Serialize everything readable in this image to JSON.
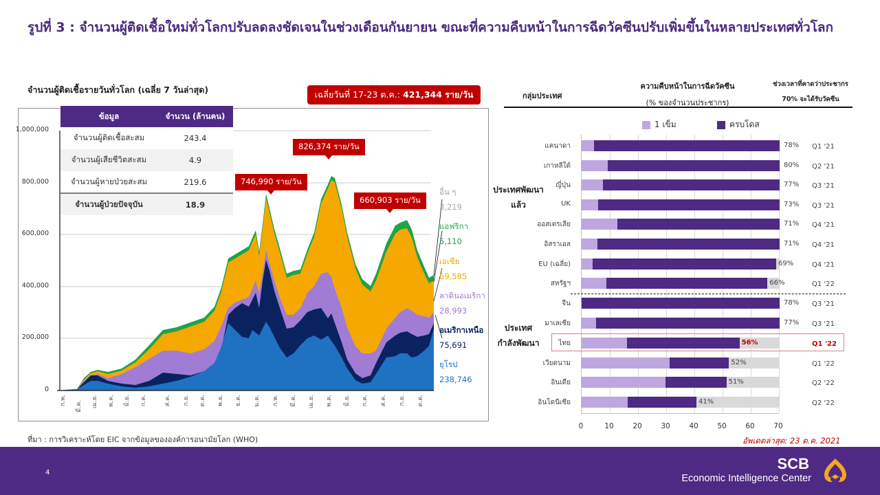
{
  "page": {
    "title": "รูปที่ 3 : จำนวนผู้ติดเชื้อใหม่ทั่วโลกปรับลดลงชัดเจนในช่วงเดือนกันยายน ขณะที่ความคืบหน้าในการฉีดวัคซีนปรับเพิ่มขึ้นในหลายประเทศทั่วโลก",
    "source": "ที่มา : การวิเคราะห์โดย EIC จากข้อมูลขององค์การอนามัยโลก (WHO)",
    "updated": "อัพเดตล่าสุด: 23 ต.ค. 2021",
    "page_number": "4"
  },
  "footer": {
    "brand": "SCB",
    "brand_sub": "Economic Intelligence Center",
    "logo_icon": "scb-lotus-logo-icon",
    "bg_color": "#4f2a84",
    "logo_color": "#f5a623"
  },
  "left_chart": {
    "subtitle": "จำนวนผู้ติดเชื้อรายวันทั่วโลก  (เฉลี่ย  7 วันล่าสุด)",
    "avg_badge": {
      "prefix": "เฉลี่ยวันที่ 17-23 ต.ค.:",
      "value": "421,344 ราย/วัน"
    },
    "table": {
      "headers": [
        "ข้อมูล",
        "จำนวน (ล้านคน)"
      ],
      "rows": [
        {
          "label": "จำนวนผู้ติดเชื้อสะสม",
          "value": "243.4"
        },
        {
          "label": "จำนวนผู้เสียชีวิตสะสม",
          "value": "4.9"
        },
        {
          "label": "จำนวนผู้หายป่วยสะสม",
          "value": "219.6"
        },
        {
          "label": "จำนวนผู้ป่วยปัจจุบัน",
          "value": "18.9"
        }
      ]
    },
    "callouts": [
      {
        "text": "746,990 ราย/วัน"
      },
      {
        "text": "826,374 ราย/วัน"
      },
      {
        "text": "660,903 ราย/วัน"
      }
    ],
    "regions": [
      {
        "name": "อื่น ๆ",
        "value": "3,219",
        "color": "#a6a6a6"
      },
      {
        "name": "แอฟริกา",
        "value": "5,110",
        "color": "#1fa34a"
      },
      {
        "name": "เอเชีย",
        "value": "69,585",
        "color": "#f5a800"
      },
      {
        "name": "ลาตินอเมริกา",
        "value": "28,993",
        "color": "#a07cd4"
      },
      {
        "name": "อเมริกาเหนือ",
        "value": "75,691",
        "color": "#0b2260"
      },
      {
        "name": "ยุโรป",
        "value": "238,746",
        "color": "#1f72c2"
      }
    ]
  },
  "right_chart": {
    "col_headers": {
      "group": "กลุ่มประเทศ",
      "progress_title": "ความคืบหน้าในการฉีดวัคซีน",
      "progress_sub": "(% ของจำนวนประชากร)",
      "eta_line1": "ช่วงเวลาที่คาดว่าประชากร",
      "eta_line2": "70% จะได้รับวัคซีน"
    },
    "legend": {
      "one_dose": "1 เข็ม",
      "full_dose": "ครบโดส"
    },
    "groups": {
      "developed": "ประเทศพัฒนาแล้ว",
      "developed_l1": "ประเทศพัฒนา",
      "developed_l2": "แล้ว",
      "developing_l1": "ประเทศ",
      "developing_l2": "กำลังพัฒนา"
    },
    "x_ticks": [
      "0",
      "10",
      "20",
      "30",
      "40",
      "50",
      "60",
      "70"
    ]
  },
  "chart_data": [
    {
      "type": "area",
      "title": "จำนวนผู้ติดเชื้อรายวันทั่วโลก (เฉลี่ย 7 วันล่าสุด)",
      "xlabel": "",
      "ylabel": "",
      "ylim": [
        0,
        1000000
      ],
      "y_ticks": [
        "0",
        "200,000",
        "400,000",
        "600,000",
        "800,000",
        "1,000,000"
      ],
      "stacked": true,
      "grid": true,
      "categories": [
        "ก.พ.",
        "มี.ค.",
        "เม.ย.",
        "พ.ค.",
        "มิ.ย.",
        "ก.ค.",
        "ส.ค.",
        "ก.ย.",
        "ต.ค.",
        "พ.ย.",
        "ธ.ค.",
        "ม.ค.",
        "ก.พ.",
        "มี.ค.",
        "เม.ย.",
        "พ.ค.",
        "มิ.ย.",
        "ก.ค.",
        "ส.ค.",
        "ก.ย.",
        "ต.ค."
      ],
      "series": [
        {
          "name": "ยุโรป",
          "values": [
            0,
            3000,
            40000,
            25000,
            15000,
            15000,
            20000,
            45000,
            120000,
            290000,
            250000,
            260000,
            150000,
            220000,
            250000,
            120000,
            55000,
            110000,
            160000,
            165000,
            238746
          ]
        },
        {
          "name": "อเมริกาเหนือ",
          "values": [
            0,
            1000,
            30000,
            30000,
            25000,
            60000,
            55000,
            40000,
            50000,
            130000,
            220000,
            250000,
            70000,
            60000,
            60000,
            40000,
            15000,
            70000,
            140000,
            130000,
            75691
          ]
        },
        {
          "name": "ลาตินอเมริกา",
          "values": [
            0,
            500,
            5000,
            25000,
            70000,
            80000,
            90000,
            80000,
            60000,
            50000,
            60000,
            80000,
            80000,
            100000,
            120000,
            140000,
            140000,
            130000,
            90000,
            60000,
            28993
          ]
        },
        {
          "name": "เอเชีย",
          "values": [
            0,
            500,
            5000,
            8000,
            20000,
            50000,
            80000,
            100000,
            90000,
            70000,
            60000,
            40000,
            40000,
            60000,
            300000,
            250000,
            120000,
            230000,
            190000,
            130000,
            69585
          ]
        },
        {
          "name": "แอฟริกา",
          "values": [
            0,
            0,
            500,
            1000,
            3000,
            8000,
            10000,
            8000,
            6000,
            6000,
            10000,
            15000,
            8000,
            6000,
            8000,
            7000,
            15000,
            25000,
            20000,
            12000,
            5110
          ]
        },
        {
          "name": "อื่น ๆ",
          "values": [
            0,
            0,
            500,
            500,
            1000,
            2000,
            2000,
            2000,
            2000,
            3000,
            4000,
            5000,
            3000,
            3000,
            3000,
            3000,
            3000,
            4000,
            4000,
            4000,
            3219
          ]
        }
      ],
      "annotations": [
        {
          "label": "746,990 ราย/วัน",
          "value": 746990
        },
        {
          "label": "826,374 ราย/วัน",
          "value": 826374
        },
        {
          "label": "660,903 ราย/วัน",
          "value": 660903
        },
        {
          "label": "เฉลี่ยวันที่ 17-23 ต.ค.: 421,344 ราย/วัน",
          "value": 421344
        }
      ],
      "legend_position": "right"
    },
    {
      "type": "bar",
      "orientation": "horizontal",
      "stacked": true,
      "title": "ความคืบหน้าในการฉีดวัคซีน (% ของจำนวนประชากร)",
      "xlabel": "",
      "ylabel": "",
      "xlim": [
        0,
        70
      ],
      "legend": [
        "1 เข็ม",
        "ครบโดส"
      ],
      "legend_position": "top",
      "categories": [
        "แคนาดา",
        "เกาหลีใต้",
        "ญี่ปุ่น",
        "UK",
        "ออสเตรเลีย",
        "อิสราเอล",
        "EU (เฉลี่ย)",
        "สหรัฐฯ",
        "จีน",
        "มาเลเซีย",
        "ไทย",
        "เวียดนาม",
        "อินเดีย",
        "อินโดนีเซีย"
      ],
      "series": [
        {
          "name": "1 เข็ม",
          "values": [
            4,
            9,
            8,
            6,
            13,
            6,
            4,
            9,
            0,
            5,
            16,
            31,
            30,
            16
          ]
        },
        {
          "name": "ครบโดส",
          "values": [
            74,
            71,
            69,
            67,
            58,
            65,
            65,
            57,
            78,
            72,
            40,
            21,
            21,
            25
          ]
        }
      ],
      "totals_label": [
        "78%",
        "80%",
        "77%",
        "73%",
        "71%",
        "71%",
        "69%",
        "66%",
        "78%",
        "77%",
        "56%",
        "52%",
        "51%",
        "41%"
      ],
      "eta_70pct": [
        "Q1 '21",
        "Q2 '21",
        "Q3 '21",
        "Q3 '21",
        "Q4 '21",
        "Q4 '21",
        "Q4 '21",
        "Q1 '22",
        "Q3 '21",
        "Q3 '21",
        "Q1 '22",
        "Q1 '22",
        "Q2 '22",
        "Q2 '22"
      ],
      "groups": [
        {
          "name": "ประเทศพัฒนาแล้ว",
          "members": [
            "แคนาดา",
            "เกาหลีใต้",
            "ญี่ปุ่น",
            "UK",
            "ออสเตรเลีย",
            "อิสราเอล",
            "EU (เฉลี่ย)",
            "สหรัฐฯ"
          ]
        },
        {
          "name": "ประเทศกำลังพัฒนา",
          "members": [
            "จีน",
            "มาเลเซีย",
            "ไทย",
            "เวียดนาม",
            "อินเดีย",
            "อินโดนีเซีย"
          ]
        }
      ],
      "highlight": "ไทย",
      "colors": {
        "one_dose": "#bea6e0",
        "full_dose": "#4e2a84",
        "remaining": "#d9d9d9",
        "highlight": "#c00000"
      }
    }
  ],
  "bars": [
    {
      "country": "แคนาดา",
      "one": 4.4,
      "full_end": 70,
      "pct": "78%",
      "eta": "Q1 '21"
    },
    {
      "country": "เกาหลีใต้",
      "one": 9.3,
      "full_end": 70,
      "pct": "80%",
      "eta": "Q2 '21"
    },
    {
      "country": "ญี่ปุ่น",
      "one": 7.5,
      "full_end": 70,
      "pct": "77%",
      "eta": "Q3 '21"
    },
    {
      "country": "UK",
      "one": 5.8,
      "full_end": 70,
      "pct": "73%",
      "eta": "Q3 '21"
    },
    {
      "country": "ออสเตรเลีย",
      "one": 12.7,
      "full_end": 70,
      "pct": "71%",
      "eta": "Q4 '21"
    },
    {
      "country": "อิสราเอล",
      "one": 5.6,
      "full_end": 70,
      "pct": "71%",
      "eta": "Q4 '21"
    },
    {
      "country": "EU (เฉลี่ย)",
      "one": 3.9,
      "full_end": 68.8,
      "pct": "69%",
      "eta": "Q4 '21"
    },
    {
      "country": "สหรัฐฯ",
      "one": 8.8,
      "full_end": 65.7,
      "pct": "66%",
      "eta": "Q1 '22"
    },
    {
      "country": "จีน",
      "one": 0,
      "full_end": 70,
      "pct": "78%",
      "eta": "Q3 '21"
    },
    {
      "country": "มาเลเซีย",
      "one": 5.1,
      "full_end": 70,
      "pct": "77%",
      "eta": "Q3 '21"
    },
    {
      "country": "ไทย",
      "one": 16.1,
      "full_end": 55.8,
      "pct": "56%",
      "eta": "Q1 '22"
    },
    {
      "country": "เวียดนาม",
      "one": 31.1,
      "full_end": 52.1,
      "pct": "52%",
      "eta": "Q1 '22"
    },
    {
      "country": "อินเดีย",
      "one": 29.7,
      "full_end": 51.2,
      "pct": "51%",
      "eta": "Q2 '22"
    },
    {
      "country": "อินโดนีเซีย",
      "one": 16.3,
      "full_end": 40.6,
      "pct": "41%",
      "eta": "Q2 '22"
    }
  ]
}
